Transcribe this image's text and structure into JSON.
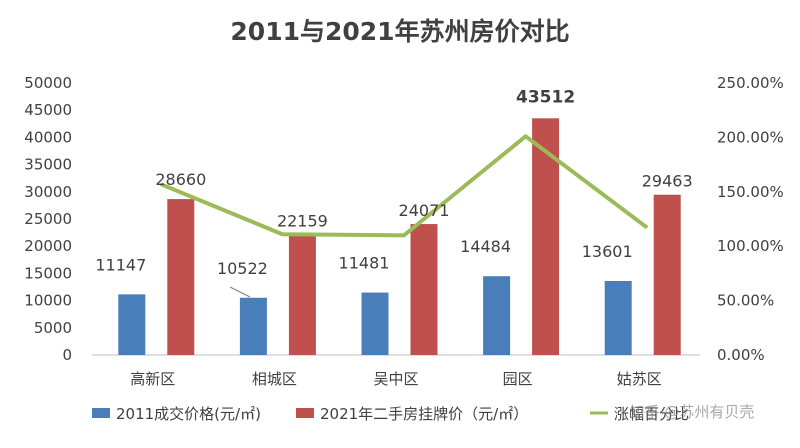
{
  "chart_data": {
    "type": "bar",
    "title": "2011与2021年苏州房价对比",
    "categories": [
      "高新区",
      "相城区",
      "吴中区",
      "园区",
      "姑苏区"
    ],
    "series": [
      {
        "name": "2011成交价格(元/㎡)",
        "type": "bar",
        "axis": "left",
        "color": "#4a7ebb",
        "values": [
          11147,
          10522,
          11481,
          14484,
          13601
        ]
      },
      {
        "name": "2021年二手房挂牌价（元/㎡）",
        "type": "bar",
        "axis": "left",
        "color": "#c0504d",
        "values": [
          28660,
          22159,
          24071,
          43512,
          29463
        ]
      },
      {
        "name": "涨幅百分比",
        "type": "line",
        "axis": "right",
        "color": "#9bbb59",
        "values": [
          1.57,
          1.11,
          1.1,
          2.01,
          1.17
        ]
      }
    ],
    "y_left": {
      "min": 0,
      "max": 50000,
      "step": 5000
    },
    "y_right": {
      "min": 0,
      "max": 2.5,
      "step": 0.5,
      "ticks": [
        "0.00%",
        "50.00%",
        "100.00%",
        "150.00%",
        "200.00%",
        "250.00%"
      ]
    },
    "highlight": {
      "series": 1,
      "index": 3,
      "color": "#c00000"
    },
    "legend": "bottom",
    "grid": false
  },
  "watermark": "知乎 @苏州有贝壳"
}
